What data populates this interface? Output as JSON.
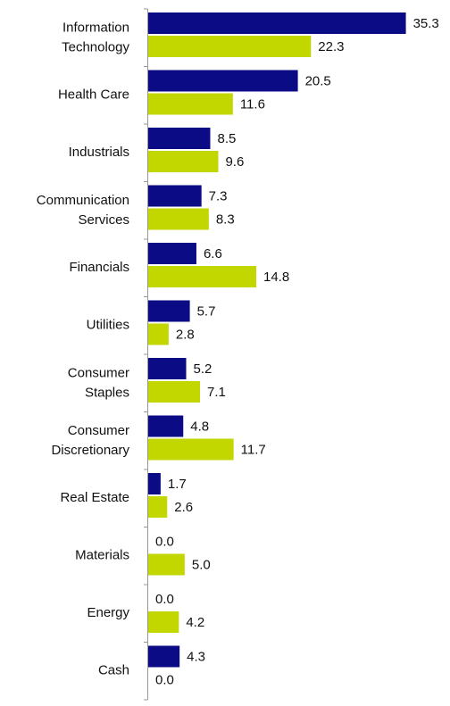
{
  "chart_data": {
    "type": "bar",
    "orientation": "horizontal",
    "categories": [
      "Information\nTechnology",
      "Health Care",
      "Industrials",
      "Communication\nServices",
      "Financials",
      "Utilities",
      "Consumer\nStaples",
      "Consumer\nDiscretionary",
      "Real Estate",
      "Materials",
      "Energy",
      "Cash"
    ],
    "series": [
      {
        "color": "#0b0b86",
        "values": [
          35.3,
          20.5,
          8.5,
          7.3,
          6.6,
          5.7,
          5.2,
          4.8,
          1.7,
          0,
          0,
          4.3
        ],
        "value_labels": [
          "35.3",
          "20.5",
          "8.5",
          "7.3",
          "6.6",
          "5.7",
          "5.2",
          "4.8",
          "1.7",
          "0.0",
          "0.0",
          "4.3"
        ]
      },
      {
        "color": "#c2d600",
        "values": [
          22.3,
          11.6,
          9.6,
          8.3,
          14.8,
          2.8,
          7.1,
          11.7,
          2.6,
          5,
          4.2,
          0
        ],
        "value_labels": [
          "22.3",
          "11.6",
          "9.6",
          "8.3",
          "14.8",
          "2.8",
          "7.1",
          "11.7",
          "2.6",
          "5.0",
          "4.2",
          "0.0"
        ]
      }
    ],
    "xlim": [
      0,
      40
    ]
  }
}
